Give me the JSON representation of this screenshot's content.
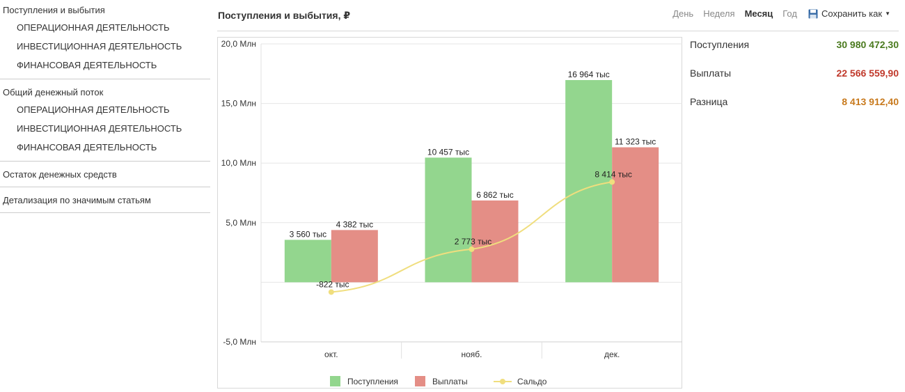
{
  "sidebar": {
    "groups": [
      {
        "title": "Поступления и выбытия",
        "items": [
          "ОПЕРАЦИОННАЯ ДЕЯТЕЛЬНОСТЬ",
          "ИНВЕСТИЦИОННАЯ ДЕЯТЕЛЬНОСТЬ",
          "ФИНАНСОВАЯ ДЕЯТЕЛЬНОСТЬ"
        ]
      },
      {
        "title": "Общий денежный поток",
        "items": [
          "ОПЕРАЦИОННАЯ ДЕЯТЕЛЬНОСТЬ",
          "ИНВЕСТИЦИОННАЯ ДЕЯТЕЛЬНОСТЬ",
          "ФИНАНСОВАЯ ДЕЯТЕЛЬНОСТЬ"
        ]
      },
      {
        "title": "Остаток денежных средств",
        "items": []
      },
      {
        "title": "Детализация по значимым статьям",
        "items": []
      }
    ]
  },
  "header": {
    "title": "Поступления и выбытия, ₽",
    "periods": [
      "День",
      "Неделя",
      "Месяц",
      "Год"
    ],
    "active_period": "Месяц",
    "save_label": "Сохранить как",
    "save_icon": "floppy-disk-icon"
  },
  "totals": [
    {
      "label": "Поступления",
      "value": "30 980 472,30",
      "color": "#4a7a1e"
    },
    {
      "label": "Выплаты",
      "value": "22 566 559,90",
      "color": "#c0392b"
    },
    {
      "label": "Разница",
      "value": "8 413 912,40",
      "color": "#c87a1e"
    }
  ],
  "chart_data": {
    "type": "bar",
    "categories": [
      "окт.",
      "нояб.",
      "дек."
    ],
    "series": [
      {
        "name": "Поступления",
        "type": "bar",
        "color": "#93d68e",
        "values": [
          3560,
          10457,
          16964
        ],
        "labels": [
          "3 560 тыс",
          "10 457 тыс",
          "16 964 тыс"
        ]
      },
      {
        "name": "Выплаты",
        "type": "bar",
        "color": "#e48e86",
        "values": [
          4382,
          6862,
          11323
        ],
        "labels": [
          "4 382 тыс",
          "6 862 тыс",
          "11 323 тыс"
        ]
      },
      {
        "name": "Сальдо",
        "type": "line",
        "color": "#f0de7e",
        "values": [
          -822,
          2773,
          8414
        ],
        "labels": [
          "-822 тыс",
          "2 773 тыс",
          "8 414 тыс"
        ]
      }
    ],
    "y_ticks": [
      20000,
      15000,
      10000,
      5000,
      -5000
    ],
    "y_tick_labels": [
      "20,0 Млн",
      "15,0 Млн",
      "10,0 Млн",
      "5,0 Млн",
      "-5,0 Млн"
    ],
    "ylim": [
      -5000,
      20000
    ],
    "grid": true,
    "legend_position": "bottom"
  }
}
